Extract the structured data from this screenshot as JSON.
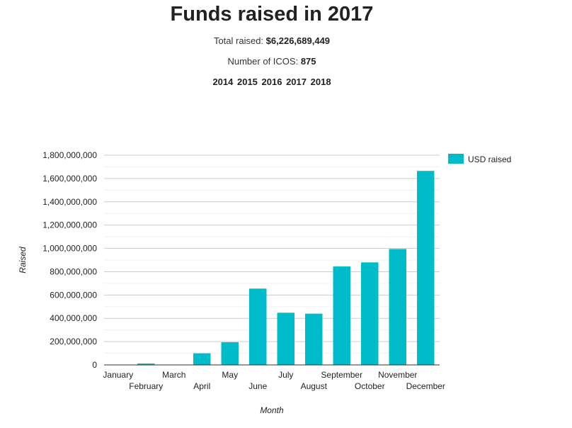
{
  "header": {
    "title": "Funds raised in 2017",
    "total_label": "Total raised:",
    "total_value": "$6,226,689,449",
    "count_label": "Number of ICOS:",
    "count_value": "875",
    "years": [
      "2014",
      "2015",
      "2016",
      "2017",
      "2018"
    ]
  },
  "chart_data": {
    "type": "bar",
    "xlabel": "Month",
    "ylabel": "Raised",
    "ylim": [
      0,
      1800000000
    ],
    "yticks": [
      0,
      200000000,
      400000000,
      600000000,
      800000000,
      1000000000,
      1200000000,
      1400000000,
      1600000000,
      1800000000
    ],
    "ytick_labels": [
      "0",
      "200,000,000",
      "400,000,000",
      "600,000,000",
      "800,000,000",
      "1,000,000,000",
      "1,200,000,000",
      "1,400,000,000",
      "1,600,000,000",
      "1,800,000,000"
    ],
    "grid": true,
    "legend_position": "top-right",
    "color": "#00bcca",
    "categories": [
      "January",
      "February",
      "March",
      "April",
      "May",
      "June",
      "July",
      "August",
      "September",
      "October",
      "November",
      "December"
    ],
    "series": [
      {
        "name": "USD raised",
        "values": [
          3000000,
          12000000,
          3000000,
          100000000,
          195000000,
          655000000,
          448000000,
          440000000,
          845000000,
          880000000,
          995000000,
          1665000000
        ]
      }
    ]
  }
}
